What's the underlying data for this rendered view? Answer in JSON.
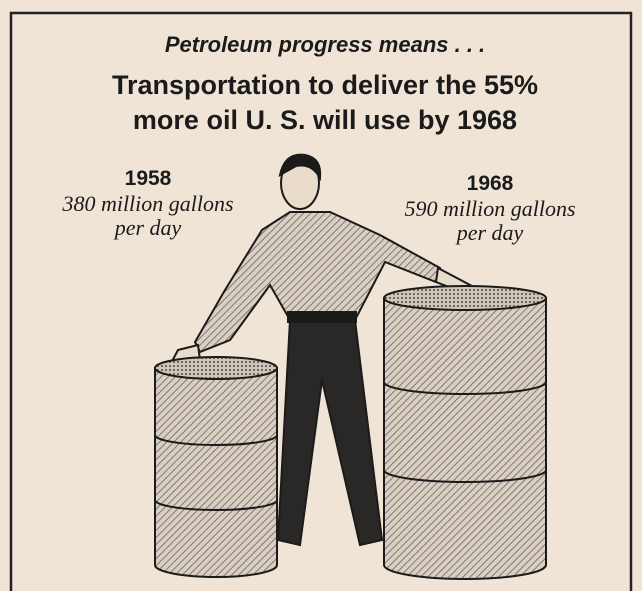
{
  "header": {
    "kicker": "Petroleum progress means . . .",
    "headline": [
      "Transportation to deliver the 55%",
      "more oil U. S. will use by 1968"
    ]
  },
  "items": [
    {
      "year": "1958",
      "amount": "380 million gallons",
      "unit": "per day"
    },
    {
      "year": "1968",
      "amount": "590 million gallons",
      "unit": "per day"
    }
  ]
}
